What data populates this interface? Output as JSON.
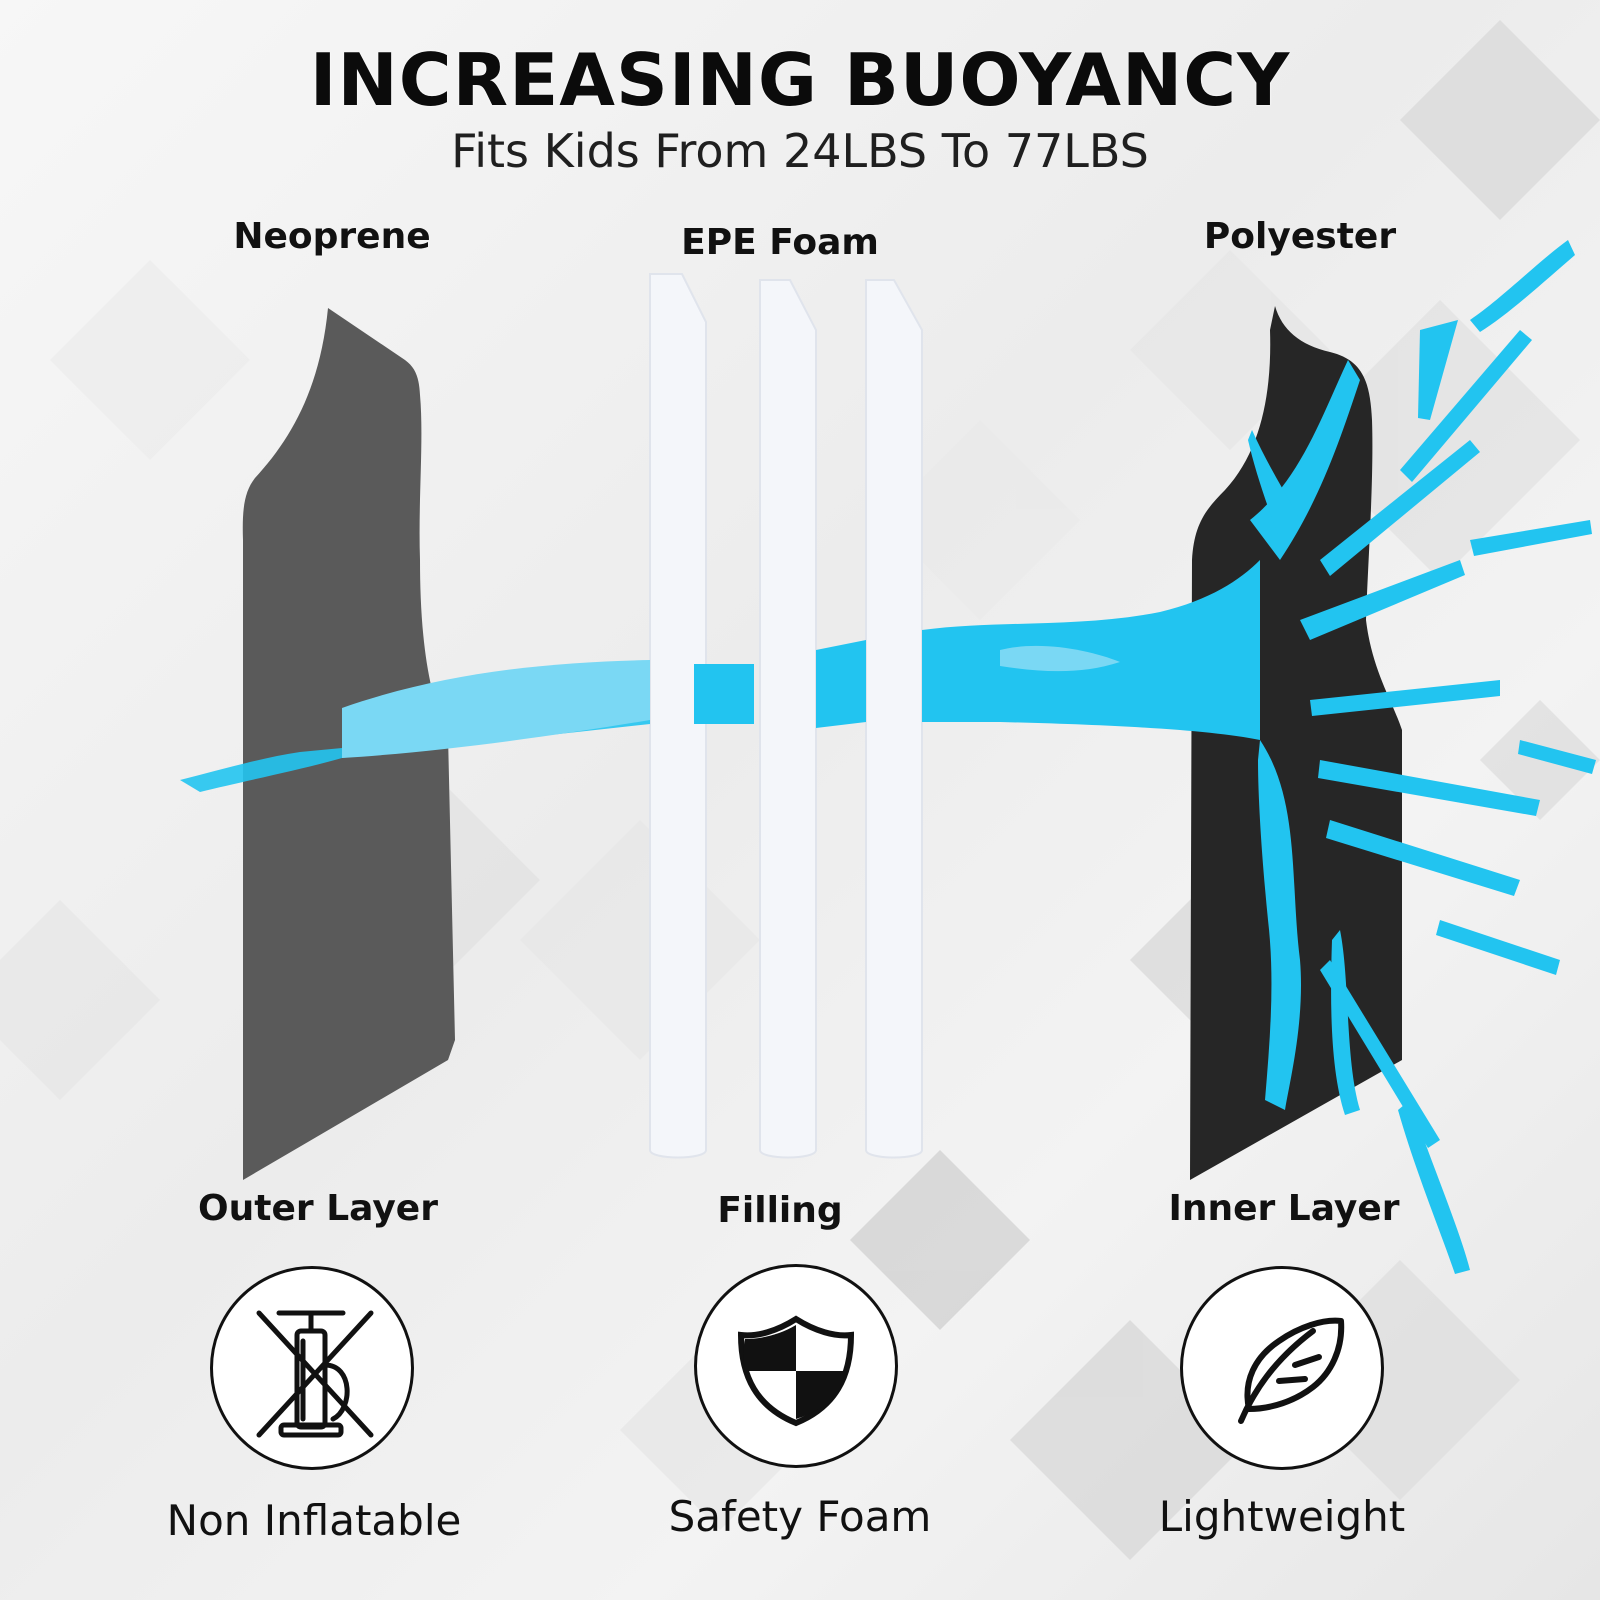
{
  "header": {
    "title": "INCREASING BUOYANCY",
    "subtitle": "Fits Kids From 24LBS To 77LBS"
  },
  "layers": [
    {
      "material": "Neoprene",
      "layer": "Outer Layer",
      "feature": "Non Inflatable",
      "icon": "crossed-out-pump-icon"
    },
    {
      "material": "EPE Foam",
      "layer": "Filling",
      "feature": "Safety Foam",
      "icon": "shield-icon"
    },
    {
      "material": "Polyester",
      "layer": "Inner Layer",
      "feature": "Lightweight",
      "icon": "feather-icon"
    }
  ],
  "colors": {
    "water": "#22c4f0",
    "neoprene": "#5a5a5a",
    "polyester": "#262626",
    "foam": "#f4f6fa"
  }
}
